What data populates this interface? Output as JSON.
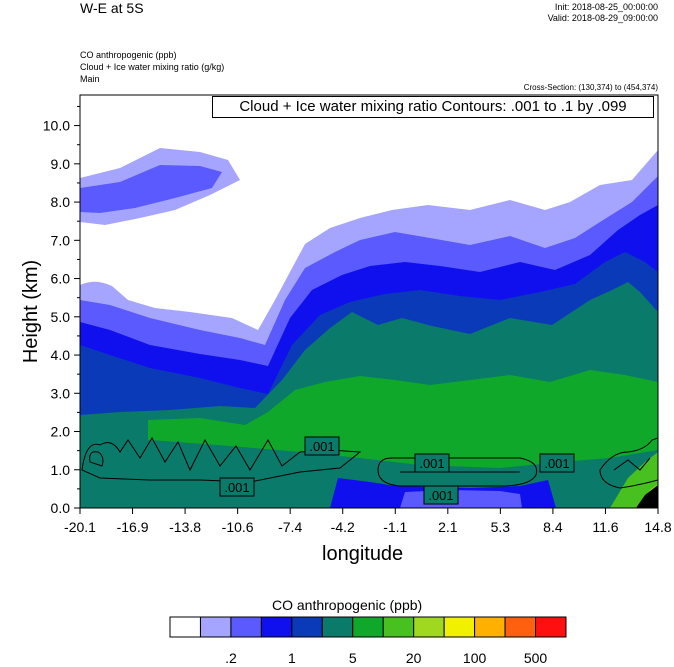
{
  "header": {
    "title": "W-E at 5S",
    "init": "Init: 2018-08-25_00:00:00",
    "valid": "Valid: 2018-08-29_09:00:00",
    "fields": [
      "CO anthropogenic   (ppb)",
      "Cloud + Ice water mixing ratio   (g/kg)",
      "Main"
    ],
    "cross_section": "Cross-Section: (130,374) to (454,374)",
    "contour_info": "Cloud + Ice water mixing ratio Contours: .001 to .1 by .099"
  },
  "chart_data": {
    "type": "heatmap",
    "xlabel": "longitude",
    "ylabel": "Height (km)",
    "x_ticks": [
      "-20.1",
      "-16.9",
      "-13.8",
      "-10.6",
      "-7.4",
      "-4.2",
      "-1.1",
      "2.1",
      "5.3",
      "8.4",
      "11.6",
      "14.8"
    ],
    "y_ticks": [
      "0.0",
      "1.0",
      "2.0",
      "3.0",
      "4.0",
      "5.0",
      "6.0",
      "7.0",
      "8.0",
      "9.0",
      "10.0"
    ],
    "xlim": [
      -20.1,
      14.8
    ],
    "ylim": [
      0,
      10.8
    ],
    "contour_labels": [
      ".001",
      ".001",
      ".001",
      ".001",
      ".001"
    ],
    "colorbar": {
      "title": "CO anthropogenic  (ppb)",
      "colors": [
        "#ffffff",
        "#a5a5ff",
        "#5a5aff",
        "#1010ee",
        "#0a3ab8",
        "#0a7a6a",
        "#10a82a",
        "#48c020",
        "#a0d820",
        "#f0f000",
        "#ffb000",
        "#ff6010",
        "#ff1010"
      ],
      "labels": [
        ".2",
        "1",
        "5",
        "20",
        "100",
        "500"
      ]
    }
  }
}
